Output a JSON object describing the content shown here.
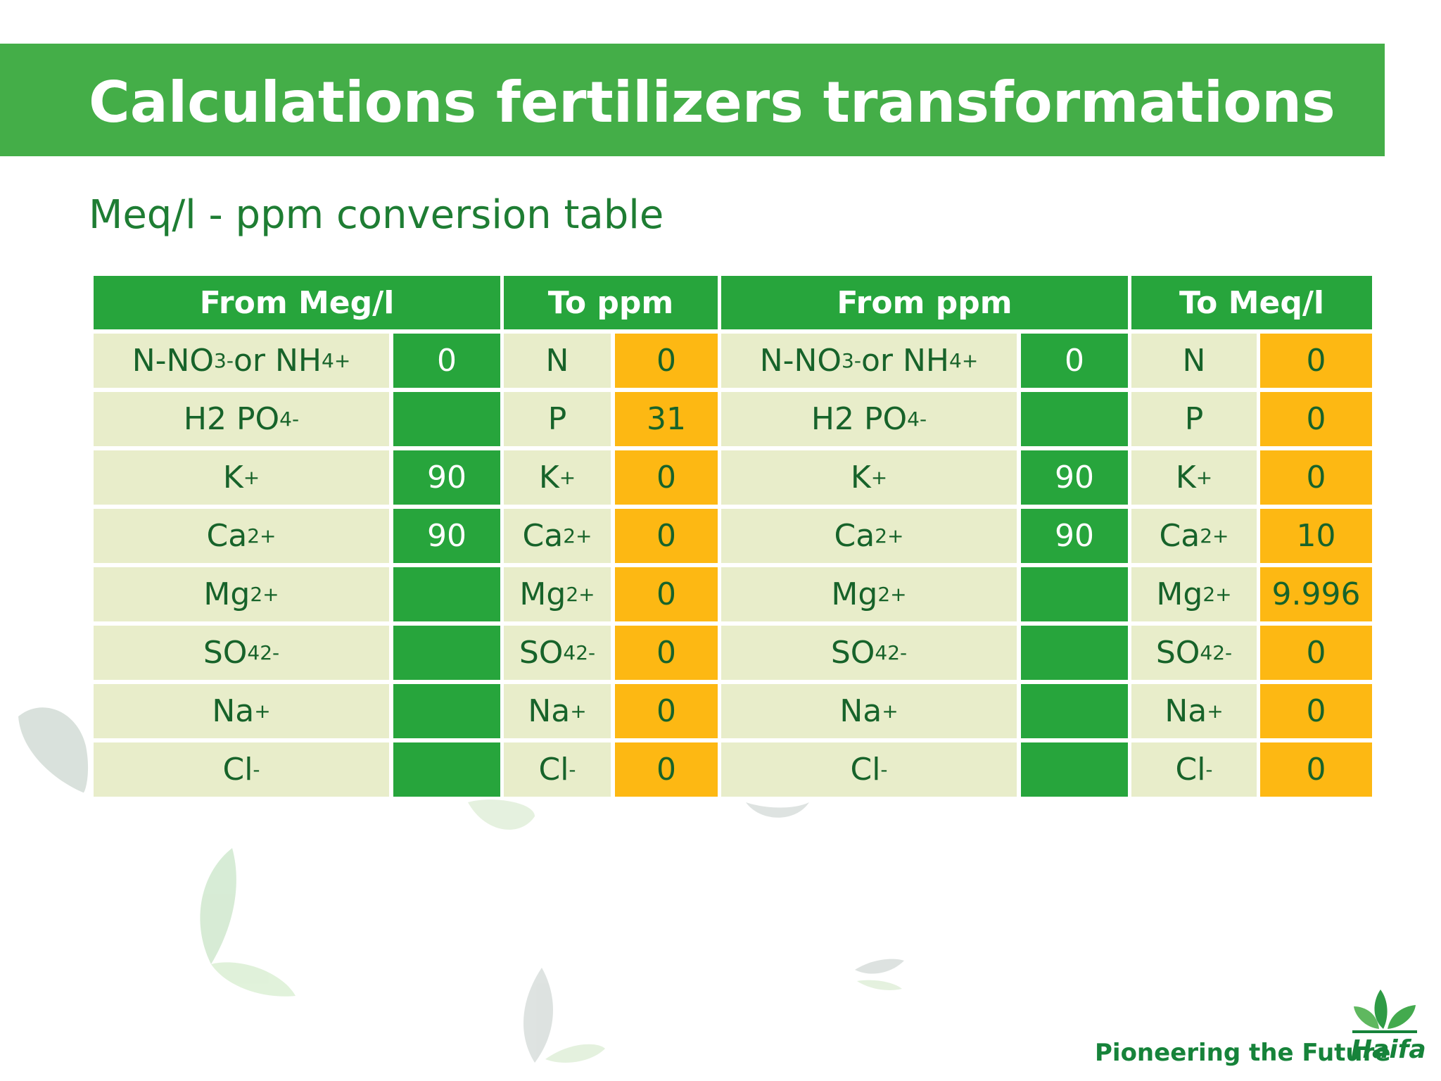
{
  "title": "Calculations fertilizers transformations",
  "subtitle": "Meq/l - ppm conversion table",
  "headers": [
    "From Meg/l",
    "To ppm",
    "From ppm",
    "To Meq/l"
  ],
  "rows": [
    {
      "labelA": "N-NO",
      "valA": "0",
      "labelB": "N",
      "valB": "0",
      "labelC": "N-NO",
      "valC": "0",
      "labelD": "N",
      "valD": "0"
    },
    {
      "labelA": "H2 PO",
      "valA": "",
      "labelB": "P",
      "valB": "31",
      "labelC": "H2 PO",
      "valC": "",
      "labelD": "P",
      "valD": "0"
    },
    {
      "labelA": "K",
      "valA": "90",
      "labelB": "K",
      "valB": "0",
      "labelC": "K",
      "valC": "90",
      "labelD": "K",
      "valD": "0"
    },
    {
      "labelA": "Ca",
      "valA": "90",
      "labelB": "Ca",
      "valB": "0",
      "labelC": "Ca",
      "valC": "90",
      "labelD": "Ca",
      "valD": "10"
    },
    {
      "labelA": "Mg",
      "valA": "",
      "labelB": "Mg",
      "valB": "0",
      "labelC": "Mg",
      "valC": "",
      "labelD": "Mg",
      "valD": "9.996"
    },
    {
      "labelA": "SO",
      "valA": "",
      "labelB": "SO",
      "valB": "0",
      "labelC": "SO",
      "valC": "",
      "labelD": "SO",
      "valD": "0"
    },
    {
      "labelA": "Na",
      "valA": "",
      "labelB": "Na",
      "valB": "0",
      "labelC": "Na",
      "valC": "",
      "labelD": "Na",
      "valD": "0"
    },
    {
      "labelA": "Cl",
      "valA": "",
      "labelB": "Cl",
      "valB": "0",
      "labelC": "Cl",
      "valC": "",
      "labelD": "Cl",
      "valD": "0"
    }
  ],
  "chem": {
    "no3_sub": "3",
    "no3_sup": "-",
    "or": " or NH",
    "nh4_sub": "4",
    "nh4_sup": "+",
    "po4_sub": "4",
    "po4_sup": "-",
    "k_sup": "+",
    "ca_sup": "2+",
    "mg_sup": "2+",
    "so4_sub": "4",
    "so4_sup": "2-",
    "na_sup": "+",
    "cl_sup": "-"
  },
  "footer": {
    "tagline": "Pioneering the Future",
    "brand": "Haifa"
  },
  "colors": {
    "title_bar": "#44ae48",
    "header": "#27a53c",
    "label_cell": "#e8edca",
    "input_cell": "#27a53c",
    "output_cell": "#fdb813",
    "text_green": "#1e7d33"
  },
  "icons": {
    "background": "leaf-icon",
    "logo": "haifa-leaf-logo-icon"
  }
}
